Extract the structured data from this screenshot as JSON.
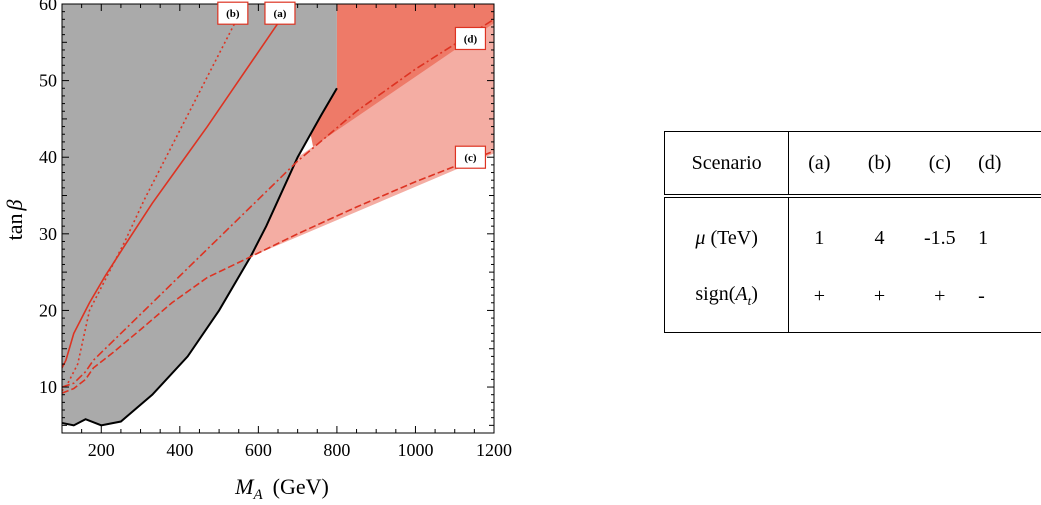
{
  "chart_data": {
    "type": "area",
    "xlabel": "M_A (GeV)",
    "xlabel_main": "M",
    "xlabel_sub": "A",
    "xlabel_unit": "(GeV)",
    "ylabel": "tanβ",
    "ylabel_main": "tan",
    "ylabel_greek": "β",
    "xlim": [
      100,
      1200
    ],
    "ylim": [
      4,
      60
    ],
    "x_ticks": [
      200,
      400,
      600,
      800,
      1000,
      1200
    ],
    "y_ticks": [
      10,
      20,
      30,
      40,
      50,
      60
    ],
    "regions": [
      {
        "name": "excluded-gray",
        "color": "#aaaaaa",
        "boundary": [
          [
            100,
            5.3
          ],
          [
            130,
            5.0
          ],
          [
            160,
            5.8
          ],
          [
            200,
            5.0
          ],
          [
            250,
            5.5
          ],
          [
            330,
            9.0
          ],
          [
            420,
            14.0
          ],
          [
            500,
            20.0
          ],
          [
            580,
            27.0
          ],
          [
            620,
            31.0
          ],
          [
            700,
            40.0
          ],
          [
            760,
            45.5
          ],
          [
            800,
            49.0
          ]
        ]
      },
      {
        "name": "dark-red",
        "color": "#ee7a68",
        "vertices": [
          [
            800,
            49.0
          ],
          [
            800,
            60
          ],
          [
            1200,
            60
          ],
          [
            1200,
            57.5
          ],
          [
            760,
            36.0
          ],
          [
            733,
            43.0
          ]
        ]
      },
      {
        "name": "light-red",
        "color": "#f4ada3",
        "vertices": [
          [
            700,
            40.0
          ],
          [
            1200,
            57.5
          ],
          [
            1200,
            40.5
          ],
          [
            580,
            27.0
          ]
        ]
      }
    ],
    "series": [
      {
        "name": "(a)",
        "style": "solid",
        "color": "#dd3322",
        "x": [
          100,
          110,
          130,
          170,
          210,
          260,
          330,
          400,
          470,
          530,
          590,
          650,
          700
        ],
        "y": [
          12.5,
          13.5,
          17.0,
          21.0,
          24.5,
          28.5,
          34.0,
          39.0,
          44.0,
          48.5,
          53.0,
          57.5,
          61.0
        ]
      },
      {
        "name": "(b)",
        "style": "dotted",
        "color": "#dd3322",
        "x": [
          100,
          115,
          140,
          170,
          210,
          260,
          310,
          360,
          410,
          460,
          510,
          560,
          590
        ],
        "y": [
          9.5,
          10.5,
          13.0,
          20.0,
          24.0,
          29.0,
          34.5,
          39.5,
          44.5,
          49.5,
          54.5,
          59.5,
          62.0
        ]
      },
      {
        "name": "(c)",
        "style": "dashed",
        "color": "#dd3322",
        "x": [
          100,
          130,
          160,
          180,
          230,
          300,
          380,
          470,
          580,
          700,
          850,
          1000,
          1200
        ],
        "y": [
          9.2,
          9.8,
          11.0,
          12.5,
          14.5,
          17.5,
          21.0,
          24.3,
          27.0,
          30.0,
          33.5,
          36.8,
          40.8
        ]
      },
      {
        "name": "(d)",
        "style": "dashdot",
        "color": "#dd3322",
        "x": [
          100,
          130,
          160,
          180,
          230,
          300,
          380,
          470,
          580,
          700,
          850,
          1000,
          1200
        ],
        "y": [
          10.0,
          10.5,
          12.0,
          13.5,
          16.0,
          19.5,
          23.5,
          28.0,
          33.5,
          39.5,
          46.0,
          51.5,
          58.0
        ]
      }
    ],
    "curve_labels": [
      {
        "text": "(b)",
        "x": 535,
        "y": 58.8
      },
      {
        "text": "(a)",
        "x": 655,
        "y": 58.8
      },
      {
        "text": "(d)",
        "x": 1140,
        "y": 55.5
      },
      {
        "text": "(c)",
        "x": 1140,
        "y": 40.0
      }
    ]
  },
  "table": {
    "header": [
      "Scenario",
      "(a)",
      "(b)",
      "(c)",
      "(d)"
    ],
    "rows": [
      {
        "label_main": "μ",
        "label_rest": " (TeV)",
        "values": [
          "1",
          "4",
          "-1.5",
          "1"
        ]
      },
      {
        "label_pre": "sign(",
        "label_var": "A",
        "label_sub": "t",
        "label_post": ")",
        "values": [
          "+",
          "+",
          "+",
          "-"
        ]
      }
    ]
  }
}
